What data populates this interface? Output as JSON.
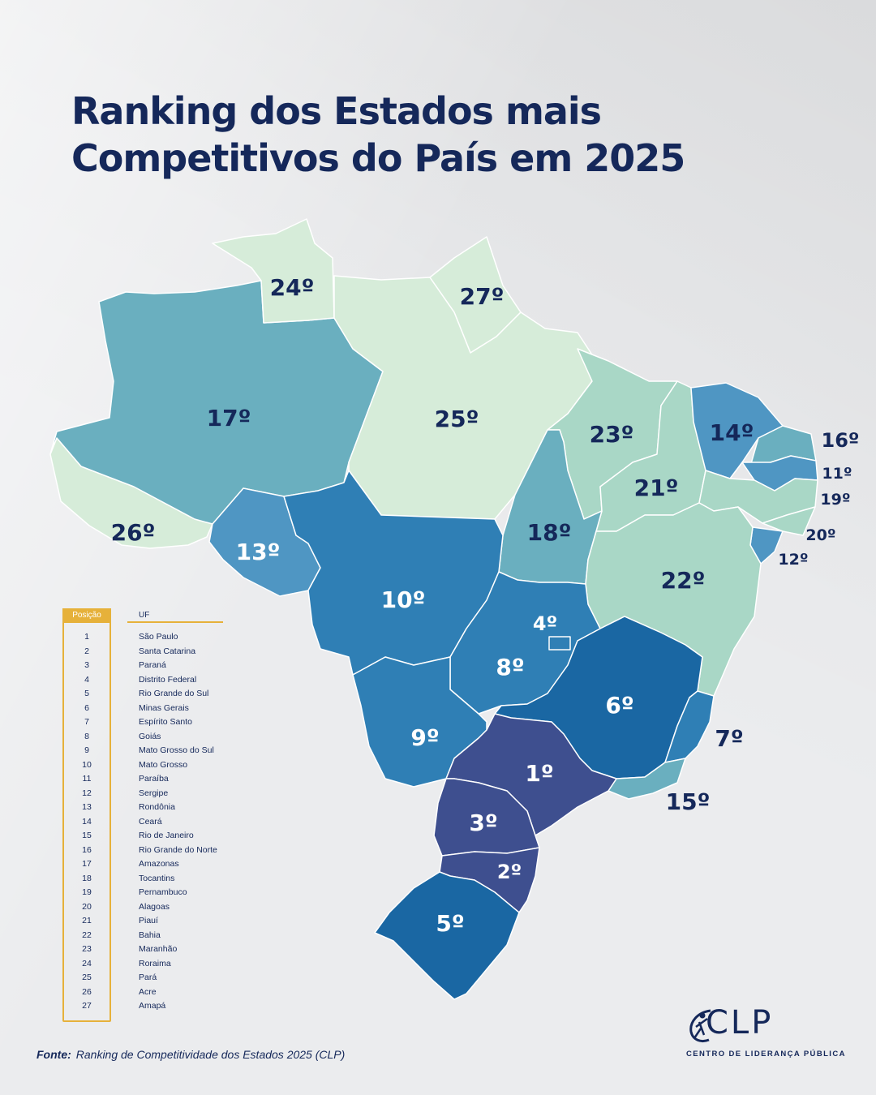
{
  "title": {
    "line1": "Ranking dos Estados mais",
    "line2": "Competitivos do País em 2025"
  },
  "colors": {
    "rank_1_3": "#3e4f8f",
    "rank_5_6": "#1a67a3",
    "rank_7_10": "#2f7fb5",
    "rank_11_16": "#4f96c3",
    "rank_17_18": "#6aafbf",
    "rank_19_23": "#a9d7c6",
    "rank_24_27": "#d6ecd9",
    "text": "#15285a",
    "accent": "#e6b13a"
  },
  "map": {
    "labels": [
      {
        "id": "AM",
        "rank": "17º"
      },
      {
        "id": "RR",
        "rank": "24º"
      },
      {
        "id": "AP",
        "rank": "27º"
      },
      {
        "id": "PA",
        "rank": "25º"
      },
      {
        "id": "MA",
        "rank": "23º"
      },
      {
        "id": "CE",
        "rank": "14º"
      },
      {
        "id": "RN",
        "rank": "16º"
      },
      {
        "id": "PB",
        "rank": "11º"
      },
      {
        "id": "PE",
        "rank": "19º"
      },
      {
        "id": "PI",
        "rank": "21º"
      },
      {
        "id": "AL",
        "rank": "20º"
      },
      {
        "id": "SE",
        "rank": "12º"
      },
      {
        "id": "AC",
        "rank": "26º"
      },
      {
        "id": "RO",
        "rank": "13º"
      },
      {
        "id": "TO",
        "rank": "18º"
      },
      {
        "id": "BA",
        "rank": "22º"
      },
      {
        "id": "MT",
        "rank": "10º"
      },
      {
        "id": "DF",
        "rank": "4º"
      },
      {
        "id": "GO",
        "rank": "8º"
      },
      {
        "id": "MG",
        "rank": "6º"
      },
      {
        "id": "ES",
        "rank": "7º"
      },
      {
        "id": "MS",
        "rank": "9º"
      },
      {
        "id": "SP",
        "rank": "1º"
      },
      {
        "id": "RJ",
        "rank": "15º"
      },
      {
        "id": "PR",
        "rank": "3º"
      },
      {
        "id": "SC",
        "rank": "2º"
      },
      {
        "id": "RS",
        "rank": "5º"
      }
    ]
  },
  "legend": {
    "header_position": "Posição",
    "header_uf": "UF",
    "rows": [
      {
        "pos": "1",
        "uf": "São Paulo"
      },
      {
        "pos": "2",
        "uf": "Santa Catarina"
      },
      {
        "pos": "3",
        "uf": "Paraná"
      },
      {
        "pos": "4",
        "uf": "Distrito Federal"
      },
      {
        "pos": "5",
        "uf": "Rio Grande do Sul"
      },
      {
        "pos": "6",
        "uf": "Minas Gerais"
      },
      {
        "pos": "7",
        "uf": "Espírito Santo"
      },
      {
        "pos": "8",
        "uf": "Goiás"
      },
      {
        "pos": "9",
        "uf": "Mato Grosso do Sul"
      },
      {
        "pos": "10",
        "uf": "Mato Grosso"
      },
      {
        "pos": "11",
        "uf": "Paraíba"
      },
      {
        "pos": "12",
        "uf": "Sergipe"
      },
      {
        "pos": "13",
        "uf": "Rondônia"
      },
      {
        "pos": "14",
        "uf": "Ceará"
      },
      {
        "pos": "15",
        "uf": "Rio de Janeiro"
      },
      {
        "pos": "16",
        "uf": "Rio Grande do Norte"
      },
      {
        "pos": "17",
        "uf": "Amazonas"
      },
      {
        "pos": "18",
        "uf": "Tocantins"
      },
      {
        "pos": "19",
        "uf": "Pernambuco"
      },
      {
        "pos": "20",
        "uf": "Alagoas"
      },
      {
        "pos": "21",
        "uf": "Piauí"
      },
      {
        "pos": "22",
        "uf": "Bahia"
      },
      {
        "pos": "23",
        "uf": "Maranhão"
      },
      {
        "pos": "24",
        "uf": "Roraima"
      },
      {
        "pos": "25",
        "uf": "Pará"
      },
      {
        "pos": "26",
        "uf": "Acre"
      },
      {
        "pos": "27",
        "uf": "Amapá"
      }
    ]
  },
  "source": {
    "label": "Fonte:",
    "text": "Ranking de Competitividade dos Estados 2025 (CLP)"
  },
  "logo": {
    "word": "CLP",
    "subtitle": "CENTRO DE LIDERANÇA PÚBLICA"
  }
}
